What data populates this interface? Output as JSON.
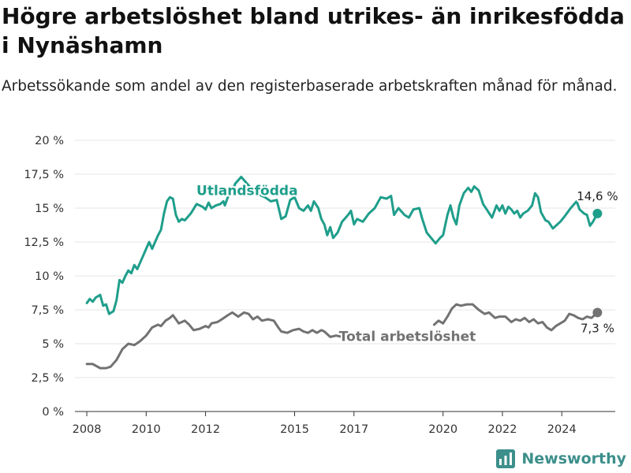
{
  "title": "Högre arbetslöshet bland utrikes- än inrikesfödda i Nynäshamn",
  "subtitle": "Arbetssökande som andel av den registerbaserade arbetskraften månad för månad.",
  "brand": "Newsworthy",
  "colors": {
    "foreign": "#1f9e8b",
    "total": "#727272",
    "grid": "#e6e6e6",
    "axis": "#333333",
    "brand": "#3c8f8b"
  },
  "chart_data": {
    "type": "line",
    "title": "Högre arbetslöshet bland utrikes- än inrikesfödda i Nynäshamn",
    "subtitle": "Arbetssökande som andel av den registerbaserade arbetskraften månad för månad.",
    "xlabel": "",
    "ylabel": "",
    "xlim": [
      2007.6,
      2025.8
    ],
    "ylim": [
      0,
      20
    ],
    "grid": true,
    "legend": "direct labels",
    "x_ticks": [
      2008,
      2010,
      2012,
      2015,
      2017,
      2020,
      2022,
      2024
    ],
    "x_tick_labels": [
      "2008",
      "2010",
      "2012",
      "2015",
      "2017",
      "2020",
      "2022",
      "2024"
    ],
    "y_ticks": [
      0,
      2.5,
      5,
      7.5,
      10,
      12.5,
      15,
      17.5,
      20
    ],
    "y_tick_labels": [
      "0 %",
      "2,5 %",
      "5 %",
      "7,5 %",
      "10 %",
      "12,5 %",
      "15 %",
      "17,5 %",
      "20 %"
    ],
    "series": [
      {
        "name": "Utlandsfödda",
        "color": "#1f9e8b",
        "end_label": "14,6 %",
        "points": [
          [
            2008.0,
            8.0
          ],
          [
            2008.1,
            8.3
          ],
          [
            2008.2,
            8.1
          ],
          [
            2008.3,
            8.4
          ],
          [
            2008.45,
            8.6
          ],
          [
            2008.55,
            7.8
          ],
          [
            2008.65,
            7.9
          ],
          [
            2008.75,
            7.2
          ],
          [
            2008.9,
            7.4
          ],
          [
            2009.0,
            8.2
          ],
          [
            2009.1,
            9.7
          ],
          [
            2009.2,
            9.5
          ],
          [
            2009.3,
            10.0
          ],
          [
            2009.4,
            10.4
          ],
          [
            2009.5,
            10.2
          ],
          [
            2009.6,
            10.8
          ],
          [
            2009.7,
            10.5
          ],
          [
            2009.8,
            11.0
          ],
          [
            2009.9,
            11.5
          ],
          [
            2010.0,
            12.0
          ],
          [
            2010.1,
            12.5
          ],
          [
            2010.2,
            12.0
          ],
          [
            2010.3,
            12.5
          ],
          [
            2010.4,
            13.0
          ],
          [
            2010.5,
            13.4
          ],
          [
            2010.6,
            14.6
          ],
          [
            2010.7,
            15.5
          ],
          [
            2010.8,
            15.8
          ],
          [
            2010.9,
            15.7
          ],
          [
            2011.0,
            14.5
          ],
          [
            2011.1,
            14.0
          ],
          [
            2011.2,
            14.2
          ],
          [
            2011.3,
            14.1
          ],
          [
            2011.5,
            14.6
          ],
          [
            2011.7,
            15.3
          ],
          [
            2011.9,
            15.1
          ],
          [
            2012.0,
            14.9
          ],
          [
            2012.1,
            15.4
          ],
          [
            2012.2,
            15.0
          ],
          [
            2012.35,
            15.2
          ],
          [
            2012.5,
            15.3
          ],
          [
            2012.6,
            15.5
          ],
          [
            2012.65,
            15.2
          ],
          [
            2012.75,
            15.8
          ],
          [
            2012.9,
            16.2
          ],
          [
            2013.0,
            16.8
          ],
          [
            2013.2,
            17.3
          ],
          [
            2013.4,
            16.8
          ],
          [
            2013.6,
            16.3
          ],
          [
            2013.8,
            16.0
          ],
          [
            2014.0,
            15.8
          ],
          [
            2014.2,
            15.5
          ],
          [
            2014.4,
            15.6
          ],
          [
            2014.55,
            14.2
          ],
          [
            2014.7,
            14.4
          ],
          [
            2014.85,
            15.6
          ],
          [
            2015.0,
            15.8
          ],
          [
            2015.15,
            15.0
          ],
          [
            2015.3,
            14.8
          ],
          [
            2015.45,
            15.2
          ],
          [
            2015.55,
            14.8
          ],
          [
            2015.65,
            15.5
          ],
          [
            2015.8,
            15.0
          ],
          [
            2015.9,
            14.2
          ],
          [
            2016.0,
            13.8
          ],
          [
            2016.1,
            13.0
          ],
          [
            2016.2,
            13.6
          ],
          [
            2016.3,
            12.8
          ],
          [
            2016.45,
            13.2
          ],
          [
            2016.6,
            14.0
          ],
          [
            2016.8,
            14.5
          ],
          [
            2016.9,
            14.8
          ],
          [
            2017.0,
            13.8
          ],
          [
            2017.1,
            14.2
          ],
          [
            2017.3,
            14.0
          ],
          [
            2017.5,
            14.6
          ],
          [
            2017.7,
            15.0
          ],
          [
            2017.9,
            15.8
          ],
          [
            2018.1,
            15.7
          ],
          [
            2018.25,
            15.9
          ],
          [
            2018.35,
            14.5
          ],
          [
            2018.5,
            15.0
          ],
          [
            2018.7,
            14.5
          ],
          [
            2018.85,
            14.3
          ],
          [
            2019.0,
            14.9
          ],
          [
            2019.2,
            15.0
          ],
          [
            2019.3,
            14.2
          ],
          [
            2019.45,
            13.2
          ],
          [
            2019.6,
            12.8
          ],
          [
            2019.75,
            12.4
          ],
          [
            2019.9,
            12.8
          ],
          [
            2020.0,
            13.0
          ],
          [
            2020.15,
            14.5
          ],
          [
            2020.25,
            15.2
          ],
          [
            2020.35,
            14.3
          ],
          [
            2020.45,
            13.8
          ],
          [
            2020.55,
            15.2
          ],
          [
            2020.7,
            16.1
          ],
          [
            2020.85,
            16.5
          ],
          [
            2020.95,
            16.2
          ],
          [
            2021.05,
            16.6
          ],
          [
            2021.2,
            16.3
          ],
          [
            2021.35,
            15.3
          ],
          [
            2021.5,
            14.8
          ],
          [
            2021.65,
            14.3
          ],
          [
            2021.8,
            15.2
          ],
          [
            2021.9,
            14.8
          ],
          [
            2022.0,
            15.2
          ],
          [
            2022.1,
            14.6
          ],
          [
            2022.2,
            15.1
          ],
          [
            2022.3,
            14.9
          ],
          [
            2022.4,
            14.6
          ],
          [
            2022.5,
            14.8
          ],
          [
            2022.6,
            14.3
          ],
          [
            2022.7,
            14.6
          ],
          [
            2022.85,
            14.8
          ],
          [
            2023.0,
            15.2
          ],
          [
            2023.1,
            16.1
          ],
          [
            2023.2,
            15.8
          ],
          [
            2023.3,
            14.7
          ],
          [
            2023.45,
            14.1
          ],
          [
            2023.55,
            14.0
          ],
          [
            2023.7,
            13.5
          ],
          [
            2023.8,
            13.7
          ],
          [
            2023.95,
            14.0
          ],
          [
            2024.1,
            14.4
          ],
          [
            2024.3,
            15.0
          ],
          [
            2024.5,
            15.5
          ],
          [
            2024.6,
            14.9
          ],
          [
            2024.75,
            14.6
          ],
          [
            2024.85,
            14.5
          ],
          [
            2024.95,
            13.7
          ],
          [
            2025.05,
            14.0
          ],
          [
            2025.2,
            14.6
          ]
        ]
      },
      {
        "name": "Total arbetslöshet",
        "color": "#727272",
        "end_label": "7,3 %",
        "points": [
          [
            2008.0,
            3.5
          ],
          [
            2008.2,
            3.5
          ],
          [
            2008.45,
            3.2
          ],
          [
            2008.65,
            3.2
          ],
          [
            2008.8,
            3.3
          ],
          [
            2009.0,
            3.8
          ],
          [
            2009.2,
            4.6
          ],
          [
            2009.4,
            5.0
          ],
          [
            2009.6,
            4.9
          ],
          [
            2009.8,
            5.2
          ],
          [
            2010.0,
            5.6
          ],
          [
            2010.2,
            6.2
          ],
          [
            2010.4,
            6.4
          ],
          [
            2010.5,
            6.3
          ],
          [
            2010.65,
            6.7
          ],
          [
            2010.8,
            6.9
          ],
          [
            2010.9,
            7.1
          ],
          [
            2011.0,
            6.8
          ],
          [
            2011.1,
            6.5
          ],
          [
            2011.3,
            6.7
          ],
          [
            2011.45,
            6.4
          ],
          [
            2011.6,
            6.0
          ],
          [
            2011.8,
            6.1
          ],
          [
            2012.0,
            6.3
          ],
          [
            2012.1,
            6.2
          ],
          [
            2012.2,
            6.5
          ],
          [
            2012.4,
            6.6
          ],
          [
            2012.55,
            6.8
          ],
          [
            2012.75,
            7.1
          ],
          [
            2012.9,
            7.3
          ],
          [
            2013.1,
            7.0
          ],
          [
            2013.3,
            7.3
          ],
          [
            2013.45,
            7.2
          ],
          [
            2013.6,
            6.8
          ],
          [
            2013.75,
            7.0
          ],
          [
            2013.9,
            6.7
          ],
          [
            2014.1,
            6.8
          ],
          [
            2014.3,
            6.7
          ],
          [
            2014.45,
            6.2
          ],
          [
            2014.55,
            5.9
          ],
          [
            2014.75,
            5.8
          ],
          [
            2014.95,
            6.0
          ],
          [
            2015.15,
            6.1
          ],
          [
            2015.3,
            5.9
          ],
          [
            2015.45,
            5.8
          ],
          [
            2015.6,
            6.0
          ],
          [
            2015.75,
            5.8
          ],
          [
            2015.9,
            6.0
          ],
          [
            2016.0,
            5.9
          ],
          [
            2016.2,
            5.5
          ],
          [
            2016.4,
            5.6
          ],
          [
            2016.6,
            5.5
          ],
          [
            2019.7,
            6.4
          ],
          [
            2019.85,
            6.7
          ],
          [
            2020.0,
            6.5
          ],
          [
            2020.15,
            7.0
          ],
          [
            2020.3,
            7.6
          ],
          [
            2020.45,
            7.9
          ],
          [
            2020.6,
            7.8
          ],
          [
            2020.8,
            7.9
          ],
          [
            2021.0,
            7.9
          ],
          [
            2021.2,
            7.5
          ],
          [
            2021.4,
            7.2
          ],
          [
            2021.55,
            7.3
          ],
          [
            2021.75,
            6.9
          ],
          [
            2021.9,
            7.0
          ],
          [
            2022.1,
            7.0
          ],
          [
            2022.3,
            6.6
          ],
          [
            2022.45,
            6.8
          ],
          [
            2022.6,
            6.7
          ],
          [
            2022.75,
            6.9
          ],
          [
            2022.9,
            6.6
          ],
          [
            2023.05,
            6.8
          ],
          [
            2023.2,
            6.5
          ],
          [
            2023.35,
            6.6
          ],
          [
            2023.5,
            6.2
          ],
          [
            2023.65,
            6.0
          ],
          [
            2023.8,
            6.3
          ],
          [
            2023.95,
            6.5
          ],
          [
            2024.1,
            6.7
          ],
          [
            2024.25,
            7.2
          ],
          [
            2024.4,
            7.1
          ],
          [
            2024.55,
            6.9
          ],
          [
            2024.7,
            6.8
          ],
          [
            2024.85,
            7.0
          ],
          [
            2025.0,
            6.9
          ],
          [
            2025.2,
            7.3
          ]
        ]
      }
    ]
  }
}
